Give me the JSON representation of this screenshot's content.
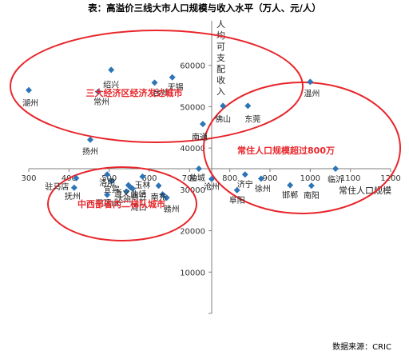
{
  "title": "表：高溢价三线大市人口规模与收入水平（万人、元/人）",
  "source": "数据来源：CRIC",
  "chart_data": {
    "type": "scatter",
    "title": "表：高溢价三线大市人口规模与收入水平（万人、元/人）",
    "xlabel": "常住人口规模",
    "ylabel": "人均可支配收入",
    "xlim": [
      300,
      1200
    ],
    "ylim": [
      0,
      70000
    ],
    "x_ticks": [
      300,
      400,
      500,
      600,
      700,
      800,
      900,
      1000,
      1100,
      1200
    ],
    "y_ticks": [
      10000,
      20000,
      30000,
      40000,
      50000,
      60000
    ],
    "grid": false,
    "color": "#2e75b6",
    "points": [
      {
        "label": "湖州",
        "x": 300,
        "y": 54000
      },
      {
        "label": "绍兴",
        "x": 505,
        "y": 58900
      },
      {
        "label": "常州",
        "x": 473,
        "y": 53600
      },
      {
        "label": "台州",
        "x": 613,
        "y": 55800
      },
      {
        "label": "无锡",
        "x": 657,
        "y": 57100
      },
      {
        "label": "扬州",
        "x": 453,
        "y": 42000
      },
      {
        "label": "温州",
        "x": 1000,
        "y": 56000
      },
      {
        "label": "佛山",
        "x": 783,
        "y": 50200
      },
      {
        "label": "东莞",
        "x": 845,
        "y": 50200
      },
      {
        "label": "南通",
        "x": 733,
        "y": 45800
      },
      {
        "label": "盐城",
        "x": 723,
        "y": 35000
      },
      {
        "label": "临沂",
        "x": 1063,
        "y": 35000
      },
      {
        "label": "济宁",
        "x": 838,
        "y": 33600
      },
      {
        "label": "徐州",
        "x": 878,
        "y": 32600
      },
      {
        "label": "沧州",
        "x": 755,
        "y": 32500
      },
      {
        "label": "邯郸",
        "x": 950,
        "y": 31000
      },
      {
        "label": "南阳",
        "x": 1003,
        "y": 30900
      },
      {
        "label": "阜阳",
        "x": 818,
        "y": 29800
      },
      {
        "label": "驻马店",
        "x": 418,
        "y": 32700
      },
      {
        "label": "洛阳",
        "x": 495,
        "y": 33600
      },
      {
        "label": "宜宾",
        "x": 506,
        "y": 32000
      },
      {
        "label": "抚州",
        "x": 413,
        "y": 30400
      },
      {
        "label": "平顶山",
        "x": 495,
        "y": 28700
      },
      {
        "label": "曲靖",
        "x": 553,
        "y": 30500
      },
      {
        "label": "玉林",
        "x": 583,
        "y": 33100
      },
      {
        "label": "达州",
        "x": 543,
        "y": 29500
      },
      {
        "label": "遵义",
        "x": 548,
        "y": 31000
      },
      {
        "label": "商丘",
        "x": 558,
        "y": 30200
      },
      {
        "label": "南充",
        "x": 623,
        "y": 30900
      },
      {
        "label": "周口",
        "x": 633,
        "y": 28800
      },
      {
        "label": "赣州",
        "x": 643,
        "y": 28000
      }
    ],
    "annotations": [
      {
        "text": "三大经济区经济发达城市",
        "color": "#e8262b"
      },
      {
        "text": "常住人口规模超过800万",
        "color": "#e8262b"
      },
      {
        "text": "中西部省内二梯队城市",
        "color": "#e8262b"
      }
    ]
  }
}
